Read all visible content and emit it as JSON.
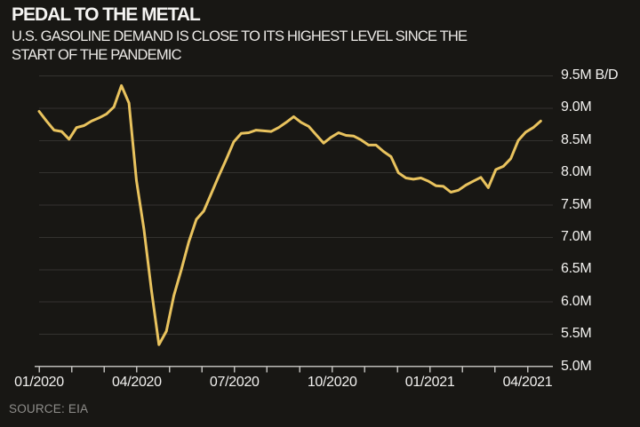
{
  "header": {
    "title": "PEDAL TO THE METAL",
    "subtitle_line1": "U.S. GASOLINE DEMAND IS CLOSE TO ITS HIGHEST LEVEL SINCE THE",
    "subtitle_line2": "START OF THE PANDEMIC"
  },
  "footer": {
    "source": "SOURCE: EIA"
  },
  "colors": {
    "background": "#181714",
    "line": "#e9c35e",
    "grid": "#33322f",
    "axis": "#bcbbb8",
    "text": "#f2f1ef",
    "source_text": "#8e8d8a"
  },
  "chart_data": {
    "type": "line",
    "title": "PEDAL TO THE METAL",
    "subtitle": "U.S. GASOLINE DEMAND IS CLOSE TO ITS HIGHEST LEVEL SINCE THE START OF THE PANDEMIC",
    "series_name": "U.S. gasoline demand, million barrels per day (B/D)",
    "source": "SOURCE: EIA",
    "x_unit": "weekly observations from 01/2020 to mid-04/2021",
    "x_tick_labels": [
      "01/2020",
      "04/2020",
      "07/2020",
      "10/2020",
      "01/2021",
      "04/2021"
    ],
    "x_minor_tick_count": 16,
    "y_tick_labels": [
      "9.5M B/D",
      "9.0M",
      "8.5M",
      "8.0M",
      "7.5M",
      "7.0M",
      "6.5M",
      "6.0M",
      "5.5M",
      "5.0M"
    ],
    "y_tick_values": [
      9.5,
      9.0,
      8.5,
      8.0,
      7.5,
      7.0,
      6.5,
      6.0,
      5.5,
      5.0
    ],
    "ylim": [
      5.0,
      9.5
    ],
    "grid": true,
    "legend": "none",
    "line_color": "#e9c35e",
    "values": [
      8.95,
      8.8,
      8.66,
      8.64,
      8.52,
      8.7,
      8.73,
      8.8,
      8.85,
      8.91,
      9.02,
      9.35,
      9.08,
      7.88,
      7.13,
      6.19,
      5.34,
      5.55,
      6.1,
      6.5,
      6.93,
      7.28,
      7.41,
      7.68,
      7.95,
      8.21,
      8.48,
      8.61,
      8.62,
      8.66,
      8.65,
      8.64,
      8.7,
      8.78,
      8.87,
      8.78,
      8.72,
      8.59,
      8.46,
      8.55,
      8.62,
      8.58,
      8.57,
      8.51,
      8.43,
      8.43,
      8.33,
      8.25,
      8.0,
      7.92,
      7.9,
      7.92,
      7.87,
      7.8,
      7.79,
      7.7,
      7.73,
      7.81,
      7.87,
      7.93,
      7.77,
      8.05,
      8.1,
      8.22,
      8.5,
      8.63,
      8.7,
      8.8
    ]
  }
}
